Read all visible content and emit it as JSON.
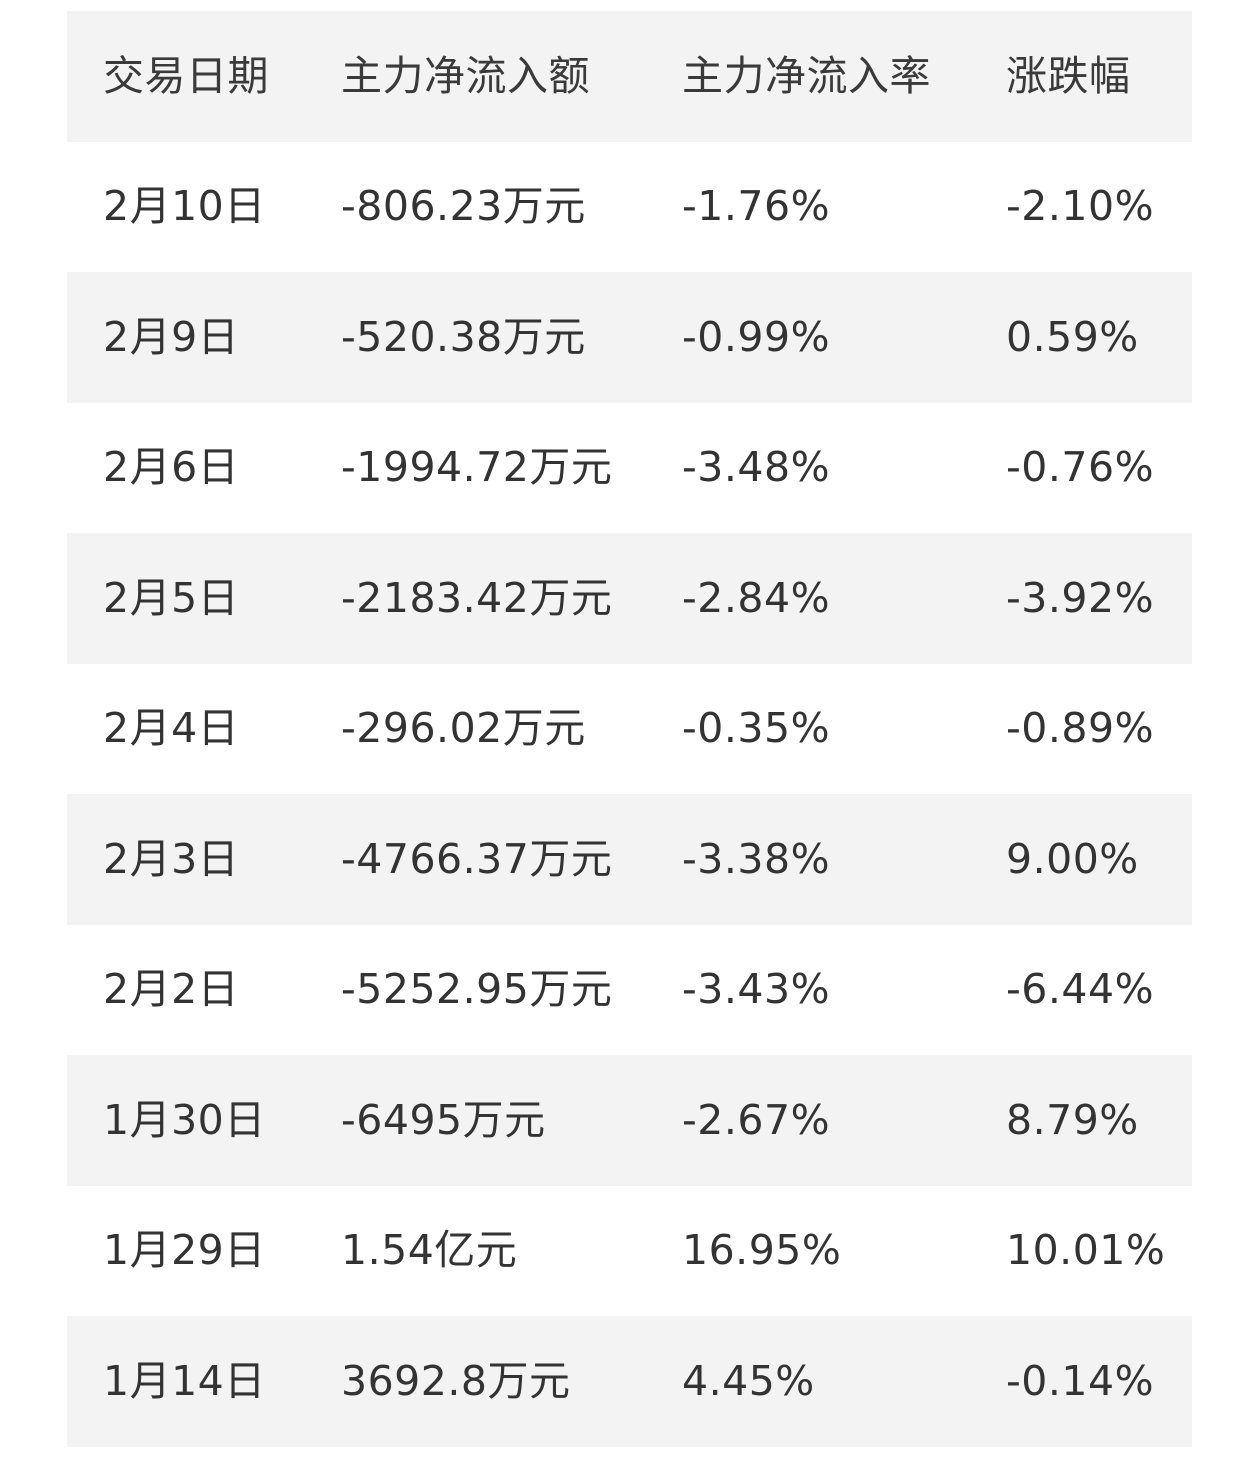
{
  "table": {
    "headers": [
      "交易日期",
      "主力净流入额",
      "主力净流入率",
      "涨跌幅"
    ],
    "rows": [
      [
        "2月10日",
        "-806.23万元",
        "-1.76%",
        "-2.10%"
      ],
      [
        "2月9日",
        "-520.38万元",
        "-0.99%",
        "0.59%"
      ],
      [
        "2月6日",
        "-1994.72万元",
        "-3.48%",
        "-0.76%"
      ],
      [
        "2月5日",
        "-2183.42万元",
        "-2.84%",
        "-3.92%"
      ],
      [
        "2月4日",
        "-296.02万元",
        "-0.35%",
        "-0.89%"
      ],
      [
        "2月3日",
        "-4766.37万元",
        "-3.38%",
        "9.00%"
      ],
      [
        "2月2日",
        "-5252.95万元",
        "-3.43%",
        "-6.44%"
      ],
      [
        "1月30日",
        "-6495万元",
        "-2.67%",
        "8.79%"
      ],
      [
        "1月29日",
        "1.54亿元",
        "16.95%",
        "10.01%"
      ],
      [
        "1月14日",
        "3692.8万元",
        "4.45%",
        "-0.14%"
      ]
    ]
  },
  "colors": {
    "shaded_row": "#f3f3f3",
    "text": "#333333"
  }
}
